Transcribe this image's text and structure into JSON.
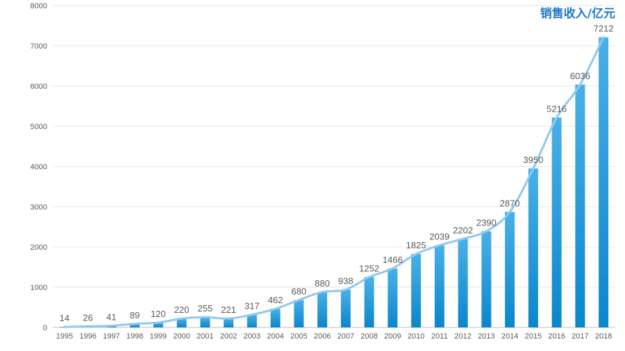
{
  "chart_data": {
    "type": "bar",
    "title": "",
    "legend_label": "销售收入/亿元",
    "categories": [
      "1995",
      "1996",
      "1997",
      "1998",
      "1999",
      "2000",
      "2001",
      "2002",
      "2003",
      "2004",
      "2005",
      "2006",
      "2007",
      "2008",
      "2009",
      "2010",
      "2011",
      "2012",
      "2013",
      "2014",
      "2015",
      "2016",
      "2017",
      "2018"
    ],
    "series": [
      {
        "values": [
          14,
          26,
          41,
          89,
          120,
          220,
          255,
          221,
          317,
          462,
          680,
          880,
          938,
          1252,
          1466,
          1825,
          2039,
          2202,
          2390,
          2870,
          3950,
          5216,
          6036,
          7212
        ]
      }
    ],
    "overlay_line": true,
    "xlabel": "",
    "ylabel": "",
    "ylim": [
      0,
      8000
    ],
    "yticks": [
      0,
      1000,
      2000,
      3000,
      4000,
      5000,
      6000,
      7000,
      8000
    ],
    "grid": true,
    "colors": {
      "bar_top": "#4ab0e6",
      "bar_bottom": "#0a86cc",
      "line": "#8ec9f0",
      "grid": "#e6e6e6",
      "title": "#1f78c8"
    }
  }
}
